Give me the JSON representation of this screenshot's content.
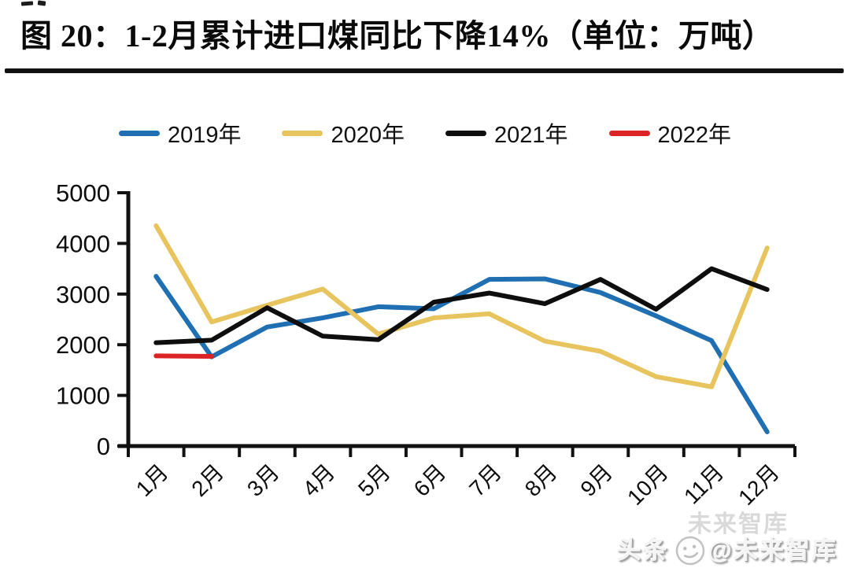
{
  "page": {
    "title": "图 20：1-2月累计进口煤同比下降14%（单位：万吨）",
    "watermark": {
      "prefix": "头条",
      "handle": "@未来智库",
      "ghost": "未来智库"
    }
  },
  "chart_data": {
    "type": "line",
    "title": "图 20：1-2月累计进口煤同比下降14%（单位：万吨）",
    "unit": "万吨",
    "categories": [
      "1月",
      "2月",
      "3月",
      "4月",
      "5月",
      "6月",
      "7月",
      "8月",
      "9月",
      "10月",
      "11月",
      "12月"
    ],
    "series": [
      {
        "name": "2019年",
        "color": "#1F6FB2",
        "values": [
          3350,
          1760,
          2350,
          2530,
          2750,
          2710,
          3290,
          3300,
          3030,
          2570,
          2080,
          280
        ]
      },
      {
        "name": "2020年",
        "color": "#E8C45F",
        "values": [
          4350,
          2450,
          2780,
          3100,
          2210,
          2530,
          2610,
          2070,
          1870,
          1370,
          1170,
          3910
        ]
      },
      {
        "name": "2021年",
        "color": "#0E0E0E",
        "values": [
          2040,
          2090,
          2730,
          2170,
          2100,
          2840,
          3020,
          2810,
          3290,
          2700,
          3500,
          3090
        ]
      },
      {
        "name": "2022年",
        "color": "#DC2426",
        "values": [
          1780,
          1770,
          null,
          null,
          null,
          null,
          null,
          null,
          null,
          null,
          null,
          null
        ]
      }
    ],
    "ylim": [
      0,
      5000
    ],
    "yticks": [
      0,
      1000,
      2000,
      3000,
      4000,
      5000
    ],
    "grid": false,
    "legend_position": "top",
    "axis_color": "#111111"
  }
}
